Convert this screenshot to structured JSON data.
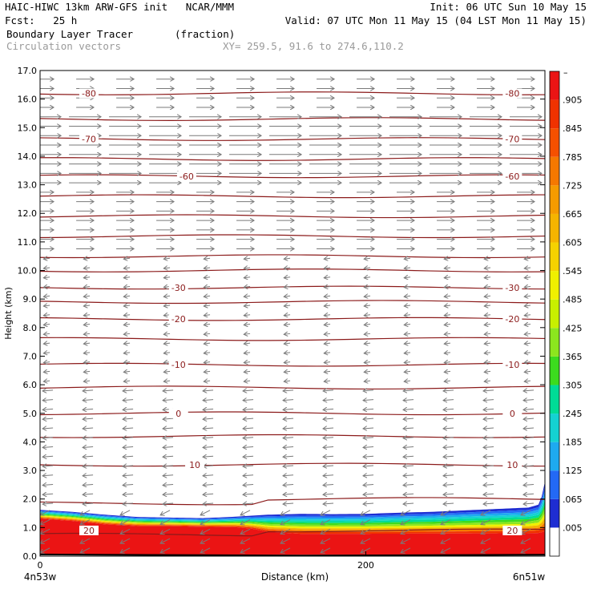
{
  "header": {
    "line1_left": "HAIC-HIWC 13km ARW-GFS init   NCAR/MMM",
    "line1_right": "Init: 06 UTC Sun 10 May 15",
    "line2_left": "Fcst:   25 h",
    "line2_right": "Valid: 07 UTC Mon 11 May 15 (04 LST Mon 11 May 15)",
    "field_name": "Boundary Layer Tracer",
    "field_units": "(fraction)",
    "vector_name": "Circulation vectors",
    "xy_range": "XY= 259.5, 91.6 to 274.6,110.2"
  },
  "chart_data": {
    "type": "heatmap",
    "ylabel": "Height (km)",
    "xlabel": "Distance (km)",
    "x_start_label": "4n53w",
    "x_end_label": "6n51w",
    "x_ticks": [
      {
        "value": 0,
        "label": "0"
      },
      {
        "value": 200,
        "label": "200"
      }
    ],
    "xlim": [
      0,
      310
    ],
    "ylim": [
      0,
      17
    ],
    "y_ticks": [
      "0.0",
      "1.0",
      "2.0",
      "3.0",
      "4.0",
      "5.0",
      "6.0",
      "7.0",
      "8.0",
      "9.0",
      "10.0",
      "11.0",
      "12.0",
      "13.0",
      "14.0",
      "15.0",
      "16.0",
      "17.0"
    ],
    "colorbar_labels": [
      ".005",
      ".065",
      ".125",
      ".185",
      ".245",
      ".305",
      ".365",
      ".425",
      ".485",
      ".545",
      ".605",
      ".665",
      ".725",
      ".785",
      ".845",
      ".905"
    ],
    "colorbar_colors": [
      "#ffffff",
      "#1e2dd2",
      "#2369f5",
      "#1eaaf0",
      "#14d2d2",
      "#00dc96",
      "#3cdc1e",
      "#8ce61e",
      "#c8f000",
      "#f0f000",
      "#f5d200",
      "#f5b400",
      "#f59b00",
      "#f57800",
      "#f55000",
      "#f03200",
      "#eb1414"
    ],
    "tracer_top_km": [
      [
        0,
        1.62
      ],
      [
        20,
        1.55
      ],
      [
        40,
        1.45
      ],
      [
        60,
        1.37
      ],
      [
        80,
        1.35
      ],
      [
        100,
        1.33
      ],
      [
        120,
        1.38
      ],
      [
        140,
        1.45
      ],
      [
        160,
        1.48
      ],
      [
        180,
        1.47
      ],
      [
        200,
        1.48
      ],
      [
        220,
        1.52
      ],
      [
        240,
        1.55
      ],
      [
        260,
        1.6
      ],
      [
        280,
        1.65
      ],
      [
        300,
        1.7
      ],
      [
        307,
        1.82
      ],
      [
        310,
        2.6
      ]
    ],
    "tracer_red_km": [
      [
        0,
        1.28
      ],
      [
        20,
        1.2
      ],
      [
        40,
        1.08
      ],
      [
        60,
        1.02
      ],
      [
        80,
        1.02
      ],
      [
        100,
        1.0
      ],
      [
        120,
        0.98
      ],
      [
        130,
        0.92
      ],
      [
        140,
        0.8
      ],
      [
        160,
        0.72
      ],
      [
        200,
        0.72
      ],
      [
        240,
        0.72
      ],
      [
        280,
        0.72
      ],
      [
        310,
        0.72
      ]
    ],
    "temperature_contours_c": [
      {
        "value": -80,
        "label": "-80",
        "h": 16.2
      },
      {
        "value": -75,
        "label": "",
        "h": 15.3
      },
      {
        "value": -70,
        "label": "-70",
        "h": 14.6
      },
      {
        "value": -65,
        "label": "",
        "h": 13.9
      },
      {
        "value": -60,
        "label": "-60",
        "h": 13.3
      },
      {
        "value": -55,
        "label": "",
        "h": 12.6
      },
      {
        "value": -50,
        "label": "",
        "h": 11.9
      },
      {
        "value": -45,
        "label": "",
        "h": 11.2
      },
      {
        "value": -40,
        "label": "",
        "h": 10.5
      },
      {
        "value": -35,
        "label": "",
        "h": 10.0
      },
      {
        "value": -30,
        "label": "-30",
        "h": 9.4
      },
      {
        "value": -25,
        "label": "",
        "h": 8.9
      },
      {
        "value": -20,
        "label": "-20",
        "h": 8.3
      },
      {
        "value": -15,
        "label": "",
        "h": 7.6
      },
      {
        "value": -10,
        "label": "-10",
        "h": 6.7
      },
      {
        "value": -5,
        "label": "",
        "h": 5.9
      },
      {
        "value": 0,
        "label": "0",
        "h": 5.0
      },
      {
        "value": 5,
        "label": "",
        "h": 4.2
      },
      {
        "value": 10,
        "label": "10",
        "h": 3.2
      },
      {
        "value": 15,
        "label": "",
        "h": 2.0
      },
      {
        "value": 20,
        "label": "20",
        "h": 0.9
      }
    ],
    "vector_style": {
      "color": "#7a7a7a"
    }
  }
}
